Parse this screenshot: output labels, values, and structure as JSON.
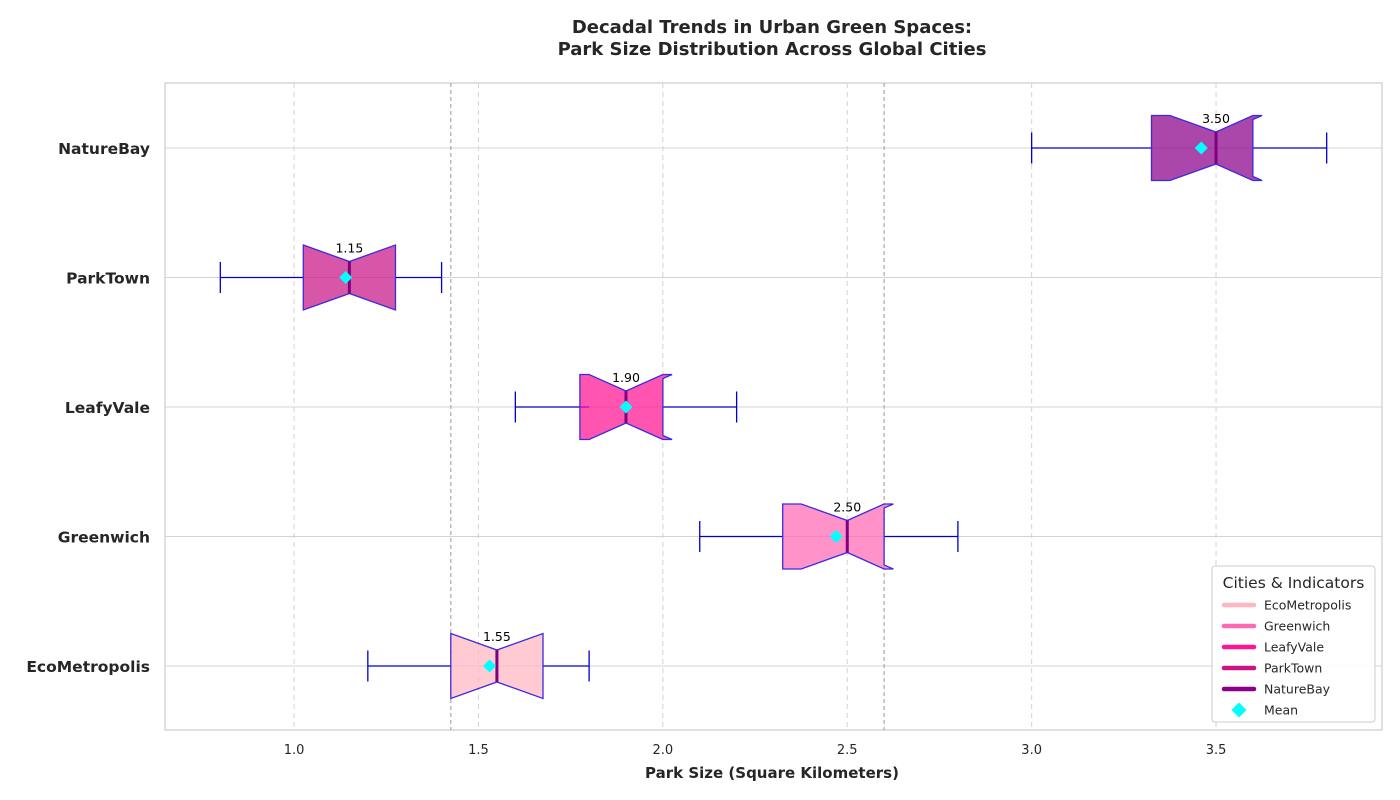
{
  "chart_data": {
    "type": "boxplot",
    "orientation": "horizontal",
    "notched": true,
    "title_lines": [
      "Decadal Trends in Urban Green Spaces:",
      "Park Size Distribution Across Global Cities"
    ],
    "xlabel": "Park Size (Square Kilometers)",
    "ylabel": "",
    "xlim": [
      0.65,
      3.95
    ],
    "xticks": [
      "1.0",
      "1.5",
      "2.0",
      "2.5",
      "3.0",
      "3.5"
    ],
    "grid": true,
    "reference_lines_x": [
      1.425,
      2.6
    ],
    "categories": [
      "EcoMetropolis",
      "Greenwich",
      "LeafyVale",
      "ParkTown",
      "NatureBay"
    ],
    "series": [
      {
        "name": "EcoMetropolis",
        "color": "#FFB6C1",
        "whisker_low": 1.2,
        "q1": 1.425,
        "median": 1.55,
        "q3": 1.675,
        "whisker_high": 1.8,
        "mean": 1.53,
        "median_label": "1.55"
      },
      {
        "name": "Greenwich",
        "color": "#FF69B4",
        "whisker_low": 2.1,
        "q1": 2.325,
        "median": 2.5,
        "q3": 2.6,
        "whisker_high": 2.8,
        "mean": 2.47,
        "median_label": "2.50"
      },
      {
        "name": "LeafyVale",
        "color": "#FF1493",
        "whisker_low": 1.6,
        "q1": 1.8,
        "median": 1.9,
        "q3": 2.0,
        "whisker_high": 2.2,
        "mean": 1.9,
        "median_label": "1.90"
      },
      {
        "name": "ParkTown",
        "color": "#C71585",
        "whisker_low": 0.8,
        "q1": 1.025,
        "median": 1.15,
        "q3": 1.275,
        "whisker_high": 1.4,
        "mean": 1.14,
        "median_label": "1.15"
      },
      {
        "name": "NatureBay",
        "color": "#8B008B",
        "whisker_low": 3.0,
        "q1": 3.325,
        "median": 3.5,
        "q3": 3.6,
        "whisker_high": 3.8,
        "mean": 3.46,
        "median_label": "3.50"
      }
    ],
    "mean_marker": {
      "label": "Mean",
      "color": "#00FFFF",
      "shape": "diamond"
    },
    "legend": {
      "title": "Cities & Indicators",
      "placement": "lower-right"
    },
    "colors": {
      "box_edge": "#3A2BE2",
      "whisker": "#0000CD",
      "median_line": "#800080",
      "grid": "#D3D3D3",
      "ref_line": "#A9A9A9"
    }
  }
}
